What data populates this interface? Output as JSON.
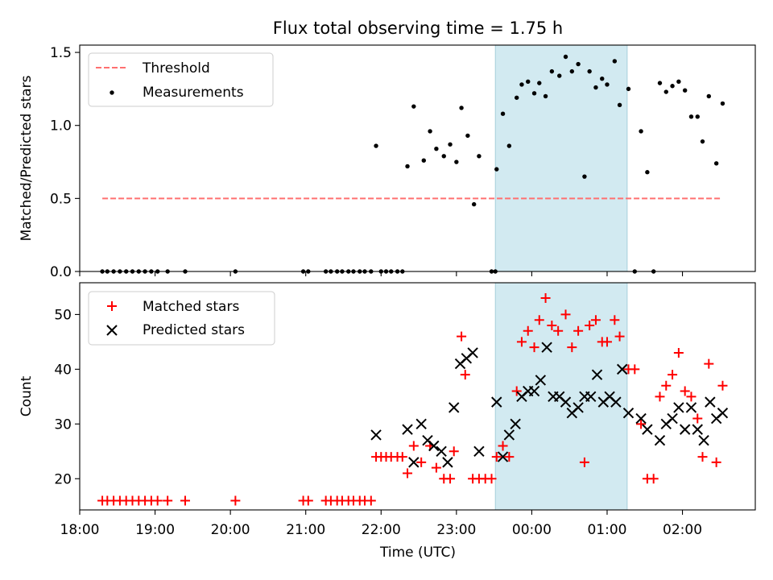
{
  "chart_data": [
    {
      "type": "scatter",
      "title": "Flux total observing time = 1.75 h",
      "xlabel": "",
      "ylabel": "Matched/Predicted stars",
      "x_axis": "time",
      "xlim": [
        "18:00",
        "02:58"
      ],
      "ylim": [
        0,
        1.55
      ],
      "y_ticks": [
        "0.0",
        "0.5",
        "1.0",
        "1.5"
      ],
      "legend": {
        "position": "top-left"
      },
      "highlight_band": {
        "from": "23:31",
        "to": "01:16",
        "color": "#add8e6"
      },
      "threshold": {
        "name": "Threshold",
        "value": 0.5,
        "x_start": "18:18",
        "x_end": "02:30",
        "color": "#ff7070",
        "style": "dashed"
      },
      "series": [
        {
          "name": "Measurements",
          "color": "#000000",
          "marker": "dot",
          "points": [
            [
              "18:18",
              0
            ],
            [
              "18:22",
              0
            ],
            [
              "18:27",
              0
            ],
            [
              "18:32",
              0
            ],
            [
              "18:37",
              0
            ],
            [
              "18:42",
              0
            ],
            [
              "18:47",
              0
            ],
            [
              "18:52",
              0
            ],
            [
              "18:57",
              0
            ],
            [
              "19:02",
              0
            ],
            [
              "19:10",
              0
            ],
            [
              "19:24",
              0
            ],
            [
              "20:04",
              0
            ],
            [
              "20:58",
              0
            ],
            [
              "21:02",
              0
            ],
            [
              "21:16",
              0
            ],
            [
              "21:20",
              0
            ],
            [
              "21:25",
              0
            ],
            [
              "21:29",
              0
            ],
            [
              "21:34",
              0
            ],
            [
              "21:38",
              0
            ],
            [
              "21:43",
              0
            ],
            [
              "21:47",
              0
            ],
            [
              "21:52",
              0
            ],
            [
              "22:00",
              0
            ],
            [
              "22:04",
              0
            ],
            [
              "22:08",
              0
            ],
            [
              "22:13",
              0
            ],
            [
              "22:17",
              0
            ],
            [
              "21:56",
              0.86
            ],
            [
              "22:21",
              0.72
            ],
            [
              "22:26",
              1.13
            ],
            [
              "22:34",
              0.76
            ],
            [
              "22:39",
              0.96
            ],
            [
              "22:44",
              0.84
            ],
            [
              "22:50",
              0.79
            ],
            [
              "22:55",
              0.87
            ],
            [
              "23:00",
              0.75
            ],
            [
              "23:04",
              1.12
            ],
            [
              "23:09",
              0.93
            ],
            [
              "23:14",
              0.46
            ],
            [
              "23:18",
              0.79
            ],
            [
              "23:28",
              0
            ],
            [
              "23:31",
              0
            ],
            [
              "23:32",
              0.7
            ],
            [
              "23:37",
              1.08
            ],
            [
              "23:42",
              0.86
            ],
            [
              "23:48",
              1.19
            ],
            [
              "23:52",
              1.28
            ],
            [
              "23:57",
              1.3
            ],
            [
              "00:02",
              1.22
            ],
            [
              "00:06",
              1.29
            ],
            [
              "00:11",
              1.2
            ],
            [
              "00:16",
              1.37
            ],
            [
              "00:22",
              1.34
            ],
            [
              "00:27",
              1.47
            ],
            [
              "00:32",
              1.37
            ],
            [
              "00:37",
              1.42
            ],
            [
              "00:42",
              0.65
            ],
            [
              "00:46",
              1.37
            ],
            [
              "00:51",
              1.26
            ],
            [
              "00:56",
              1.32
            ],
            [
              "01:00",
              1.28
            ],
            [
              "01:06",
              1.44
            ],
            [
              "01:10",
              1.14
            ],
            [
              "01:17",
              1.25
            ],
            [
              "01:22",
              0
            ],
            [
              "01:27",
              0.96
            ],
            [
              "01:32",
              0.68
            ],
            [
              "01:37",
              0
            ],
            [
              "01:42",
              1.29
            ],
            [
              "01:47",
              1.23
            ],
            [
              "01:52",
              1.27
            ],
            [
              "01:57",
              1.3
            ],
            [
              "02:02",
              1.24
            ],
            [
              "02:07",
              1.06
            ],
            [
              "02:12",
              1.06
            ],
            [
              "02:16",
              0.89
            ],
            [
              "02:21",
              1.2
            ],
            [
              "02:27",
              0.74
            ],
            [
              "02:32",
              1.15
            ]
          ]
        }
      ]
    },
    {
      "type": "scatter",
      "title": "",
      "xlabel": "Time (UTC)",
      "ylabel": "Count",
      "x_axis": "time",
      "xlim": [
        "18:00",
        "02:58"
      ],
      "ylim": [
        14.3,
        55.8
      ],
      "x_ticks": [
        "18:00",
        "19:00",
        "20:00",
        "21:00",
        "22:00",
        "23:00",
        "00:00",
        "01:00",
        "02:00"
      ],
      "y_ticks": [
        "20",
        "30",
        "40",
        "50"
      ],
      "legend": {
        "position": "top-left"
      },
      "highlight_band": {
        "from": "23:31",
        "to": "01:16",
        "color": "#add8e6"
      },
      "series": [
        {
          "name": "Matched stars",
          "color": "#ff0000",
          "marker": "plus",
          "points": [
            [
              "18:18",
              16
            ],
            [
              "18:22",
              16
            ],
            [
              "18:27",
              16
            ],
            [
              "18:32",
              16
            ],
            [
              "18:37",
              16
            ],
            [
              "18:42",
              16
            ],
            [
              "18:47",
              16
            ],
            [
              "18:52",
              16
            ],
            [
              "18:57",
              16
            ],
            [
              "19:02",
              16
            ],
            [
              "19:10",
              16
            ],
            [
              "19:24",
              16
            ],
            [
              "20:04",
              16
            ],
            [
              "20:58",
              16
            ],
            [
              "21:02",
              16
            ],
            [
              "21:16",
              16
            ],
            [
              "21:20",
              16
            ],
            [
              "21:25",
              16
            ],
            [
              "21:29",
              16
            ],
            [
              "21:34",
              16
            ],
            [
              "21:38",
              16
            ],
            [
              "21:43",
              16
            ],
            [
              "21:47",
              16
            ],
            [
              "21:52",
              16
            ],
            [
              "21:56",
              24
            ],
            [
              "22:00",
              24
            ],
            [
              "22:04",
              24
            ],
            [
              "22:08",
              24
            ],
            [
              "22:13",
              24
            ],
            [
              "22:17",
              24
            ],
            [
              "22:21",
              21
            ],
            [
              "22:26",
              26
            ],
            [
              "22:32",
              23
            ],
            [
              "22:39",
              26
            ],
            [
              "22:44",
              22
            ],
            [
              "22:50",
              20
            ],
            [
              "22:55",
              20
            ],
            [
              "22:58",
              25
            ],
            [
              "23:04",
              46
            ],
            [
              "23:07",
              39
            ],
            [
              "23:13",
              20
            ],
            [
              "23:18",
              20
            ],
            [
              "23:23",
              20
            ],
            [
              "23:28",
              20
            ],
            [
              "23:32",
              24
            ],
            [
              "23:37",
              26
            ],
            [
              "23:42",
              24
            ],
            [
              "23:48",
              36
            ],
            [
              "23:52",
              45
            ],
            [
              "23:57",
              47
            ],
            [
              "00:02",
              44
            ],
            [
              "00:06",
              49
            ],
            [
              "00:11",
              53
            ],
            [
              "00:16",
              48
            ],
            [
              "00:21",
              47
            ],
            [
              "00:27",
              50
            ],
            [
              "00:32",
              44
            ],
            [
              "00:37",
              47
            ],
            [
              "00:42",
              23
            ],
            [
              "00:46",
              48
            ],
            [
              "00:51",
              49
            ],
            [
              "00:56",
              45
            ],
            [
              "01:00",
              45
            ],
            [
              "01:06",
              49
            ],
            [
              "01:10",
              46
            ],
            [
              "01:17",
              40
            ],
            [
              "01:22",
              40
            ],
            [
              "01:27",
              30
            ],
            [
              "01:32",
              20
            ],
            [
              "01:37",
              20
            ],
            [
              "01:42",
              35
            ],
            [
              "01:47",
              37
            ],
            [
              "01:52",
              39
            ],
            [
              "01:57",
              43
            ],
            [
              "02:02",
              36
            ],
            [
              "02:07",
              35
            ],
            [
              "02:12",
              31
            ],
            [
              "02:16",
              24
            ],
            [
              "02:21",
              41
            ],
            [
              "02:27",
              23
            ],
            [
              "02:32",
              37
            ]
          ]
        },
        {
          "name": "Predicted stars",
          "color": "#000000",
          "marker": "x",
          "points": [
            [
              "21:56",
              28
            ],
            [
              "22:21",
              29
            ],
            [
              "22:26",
              23
            ],
            [
              "22:32",
              30
            ],
            [
              "22:37",
              27
            ],
            [
              "22:42",
              26
            ],
            [
              "22:48",
              25
            ],
            [
              "22:53",
              23
            ],
            [
              "22:58",
              33
            ],
            [
              "23:03",
              41
            ],
            [
              "23:08",
              42
            ],
            [
              "23:13",
              43
            ],
            [
              "23:18",
              25
            ],
            [
              "23:32",
              34
            ],
            [
              "23:37",
              24
            ],
            [
              "23:42",
              28
            ],
            [
              "23:47",
              30
            ],
            [
              "23:52",
              35
            ],
            [
              "23:57",
              36
            ],
            [
              "00:02",
              36
            ],
            [
              "00:07",
              38
            ],
            [
              "00:12",
              44
            ],
            [
              "00:17",
              35
            ],
            [
              "00:22",
              35
            ],
            [
              "00:27",
              34
            ],
            [
              "00:32",
              32
            ],
            [
              "00:37",
              33
            ],
            [
              "00:42",
              35
            ],
            [
              "00:47",
              35
            ],
            [
              "00:52",
              39
            ],
            [
              "00:57",
              34
            ],
            [
              "01:02",
              35
            ],
            [
              "01:07",
              34
            ],
            [
              "01:12",
              40
            ],
            [
              "01:17",
              32
            ],
            [
              "01:27",
              31
            ],
            [
              "01:32",
              29
            ],
            [
              "01:42",
              27
            ],
            [
              "01:47",
              30
            ],
            [
              "01:52",
              31
            ],
            [
              "01:57",
              33
            ],
            [
              "02:02",
              29
            ],
            [
              "02:07",
              33
            ],
            [
              "02:12",
              29
            ],
            [
              "02:17",
              27
            ],
            [
              "02:22",
              34
            ],
            [
              "02:27",
              31
            ],
            [
              "02:32",
              32
            ]
          ]
        }
      ]
    }
  ]
}
